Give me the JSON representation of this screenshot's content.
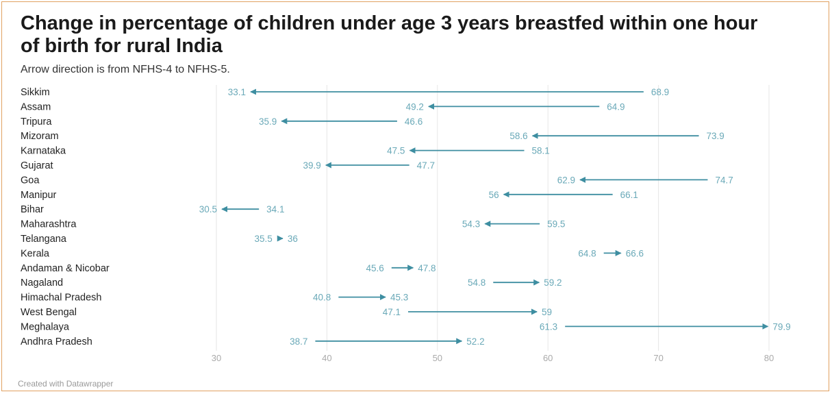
{
  "title": "Change in percentage of children under age 3 years breastfed within one hour of birth for rural India",
  "subtitle": "Arrow direction is from NFHS-4 to NFHS-5.",
  "footer": "Created with Datawrapper",
  "colors": {
    "arrow": "#3e8ea1",
    "label": "#6aa9b8",
    "grid": "#e6e6e6",
    "frame": "#e0a060"
  },
  "chart_data": {
    "type": "arrow",
    "xlim": [
      30,
      80
    ],
    "xticks": [
      30,
      40,
      50,
      60,
      70,
      80
    ],
    "grid": true,
    "rows": [
      {
        "name": "Sikkim",
        "nfhs4": 68.9,
        "nfhs5": 33.1
      },
      {
        "name": "Assam",
        "nfhs4": 64.9,
        "nfhs5": 49.2
      },
      {
        "name": "Tripura",
        "nfhs4": 46.6,
        "nfhs5": 35.9
      },
      {
        "name": "Mizoram",
        "nfhs4": 73.9,
        "nfhs5": 58.6
      },
      {
        "name": "Karnataka",
        "nfhs4": 58.1,
        "nfhs5": 47.5
      },
      {
        "name": "Gujarat",
        "nfhs4": 47.7,
        "nfhs5": 39.9
      },
      {
        "name": "Goa",
        "nfhs4": 74.7,
        "nfhs5": 62.9
      },
      {
        "name": "Manipur",
        "nfhs4": 66.1,
        "nfhs5": 56
      },
      {
        "name": "Bihar",
        "nfhs4": 34.1,
        "nfhs5": 30.5
      },
      {
        "name": "Maharashtra",
        "nfhs4": 59.5,
        "nfhs5": 54.3
      },
      {
        "name": "Telangana",
        "nfhs4": 35.5,
        "nfhs5": 36
      },
      {
        "name": "Kerala",
        "nfhs4": 64.8,
        "nfhs5": 66.6
      },
      {
        "name": "Andaman & Nicobar",
        "nfhs4": 45.6,
        "nfhs5": 47.8
      },
      {
        "name": "Nagaland",
        "nfhs4": 54.8,
        "nfhs5": 59.2
      },
      {
        "name": "Himachal Pradesh",
        "nfhs4": 40.8,
        "nfhs5": 45.3
      },
      {
        "name": "West Bengal",
        "nfhs4": 47.1,
        "nfhs5": 59
      },
      {
        "name": "Meghalaya",
        "nfhs4": 61.3,
        "nfhs5": 79.9
      },
      {
        "name": "Andhra Pradesh",
        "nfhs4": 38.7,
        "nfhs5": 52.2
      }
    ]
  }
}
